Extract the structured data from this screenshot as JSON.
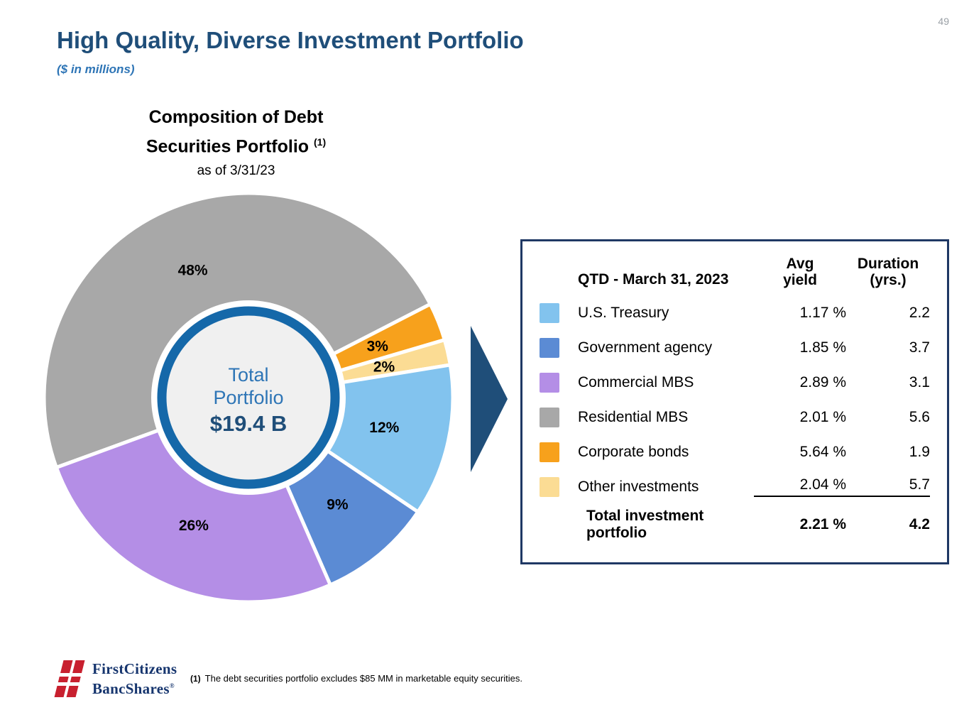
{
  "page": {
    "number": "49",
    "title": "High Quality, Diverse Investment Portfolio",
    "subtitle": "($ in millions)"
  },
  "chart": {
    "title_line1": "Composition of Debt",
    "title_line2": "Securities Portfolio",
    "title_superscript": "(1)",
    "subtitle": "as of 3/31/23",
    "center_label_line1": "Total",
    "center_label_line2": "Portfolio",
    "center_value": "$19.4 B"
  },
  "chart_data": {
    "type": "pie",
    "title": "Composition of Debt Securities Portfolio (1)",
    "subtitle": "as of 3/31/23",
    "center_label": "Total Portfolio $19.4 B",
    "total_value_billions": 19.4,
    "start_angle_deg": 200,
    "direction": "clockwise",
    "label_radius_ratio": 0.68,
    "slices": [
      {
        "label": "Residential MBS",
        "pct": 48,
        "color": "#a8a8a8"
      },
      {
        "label": "Corporate bonds",
        "pct": 3,
        "color": "#f7a11c"
      },
      {
        "label": "Other investments",
        "pct": 2,
        "color": "#fbdc94"
      },
      {
        "label": "U.S. Treasury",
        "pct": 12,
        "color": "#82c3ee"
      },
      {
        "label": "Government agency",
        "pct": 9,
        "color": "#5b8bd4"
      },
      {
        "label": "Commercial MBS",
        "pct": 26,
        "color": "#b48ee6"
      }
    ]
  },
  "table": {
    "header": {
      "col1": "QTD - March 31, 2023",
      "col2_line1": "Avg",
      "col2_line2": "yield",
      "col3_line1": "Duration",
      "col3_line2": "(yrs.)"
    },
    "rows": [
      {
        "label": "U.S. Treasury",
        "swatch": "#82c3ee",
        "avg_yield": "1.17 %",
        "duration": "2.2",
        "underline": false
      },
      {
        "label": "Government agency",
        "swatch": "#5b8bd4",
        "avg_yield": "1.85 %",
        "duration": "3.7",
        "underline": false
      },
      {
        "label": "Commercial MBS",
        "swatch": "#b48ee6",
        "avg_yield": "2.89 %",
        "duration": "3.1",
        "underline": false
      },
      {
        "label": "Residential MBS",
        "swatch": "#a8a8a8",
        "avg_yield": "2.01 %",
        "duration": "5.6",
        "underline": false
      },
      {
        "label": "Corporate bonds",
        "swatch": "#f7a11c",
        "avg_yield": "5.64 %",
        "duration": "1.9",
        "underline": false
      },
      {
        "label": "Other investments",
        "swatch": "#fbdc94",
        "avg_yield": "2.04 %",
        "duration": "5.7",
        "underline": true
      }
    ],
    "total": {
      "label": "Total investment portfolio",
      "avg_yield": "2.21 %",
      "duration": "4.2"
    }
  },
  "footer": {
    "footnote_marker": "(1)",
    "footnote_text": "The debt securities portfolio excludes $85 MM in marketable equity securities.",
    "logo_line1": "FirstCitizens",
    "logo_line2": "BancShares",
    "logo_registered": "®"
  },
  "colors": {
    "accent_dark_blue": "#1f4e79",
    "accent_blue": "#2e75b6",
    "table_border": "#1f3864",
    "donut_ring": "#1568a9",
    "logo_red": "#c8202f"
  }
}
